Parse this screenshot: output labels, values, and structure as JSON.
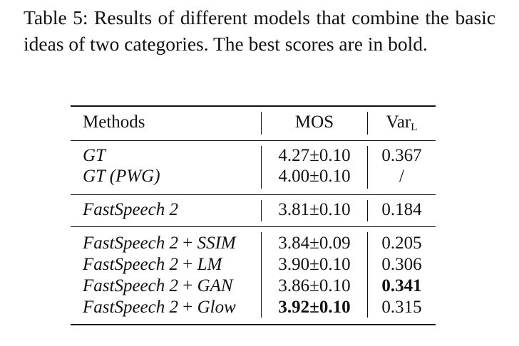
{
  "caption": {
    "text": "Table 5: Results of different models that combine the basic ideas of two categories.  The best scores are in bold."
  },
  "table": {
    "headers": {
      "methods": "Methods",
      "mos": "MOS",
      "var_base": "Var",
      "var_sub": "L"
    },
    "groups": [
      [
        {
          "method": "GT",
          "mos": "4.27±0.10",
          "var": "0.367"
        },
        {
          "method": "GT (PWG)",
          "mos": "4.00±0.10",
          "var": "/"
        }
      ],
      [
        {
          "method": "FastSpeech 2",
          "mos": "3.81±0.10",
          "var": "0.184"
        }
      ],
      [
        {
          "method_base": "FastSpeech 2",
          "method_op": "+",
          "method_mod": "SSIM",
          "mos": "3.84±0.09",
          "var": "0.205"
        },
        {
          "method_base": "FastSpeech 2",
          "method_op": "+",
          "method_mod": "LM",
          "mos": "3.90±0.10",
          "var": "0.306"
        },
        {
          "method_base": "FastSpeech 2",
          "method_op": "+",
          "method_mod": "GAN",
          "mos": "3.86±0.10",
          "var": "0.341",
          "var_best": true
        },
        {
          "method_base": "FastSpeech 2",
          "method_op": "+",
          "method_mod": "Glow",
          "mos": "3.92±0.10",
          "var": "0.315",
          "mos_best": true
        }
      ]
    ]
  }
}
